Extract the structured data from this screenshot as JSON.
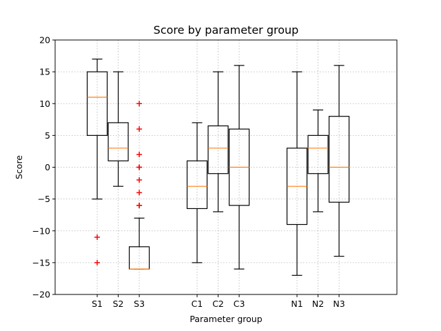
{
  "chart_data": {
    "type": "box",
    "title": "Score by parameter group",
    "xlabel": "Parameter group",
    "ylabel": "Score",
    "ylim": [
      -20,
      20
    ],
    "yticks": [
      -20,
      -15,
      -10,
      -5,
      0,
      5,
      10,
      15,
      20
    ],
    "grid": true,
    "colors": {
      "box": "#000000",
      "median": "#ff7f0e",
      "flier": "#ff0000",
      "grid": "#b0b0b0"
    },
    "groups": [
      {
        "label": "S1",
        "pos": 2.5,
        "q1": 5,
        "median": 11,
        "q3": 15,
        "whisker_low": -5,
        "whisker_high": 17,
        "fliers": [
          -11,
          -15
        ]
      },
      {
        "label": "S2",
        "pos": 3.5,
        "q1": 1,
        "median": 3,
        "q3": 7,
        "whisker_low": -3,
        "whisker_high": 15,
        "fliers": []
      },
      {
        "label": "S3",
        "pos": 4.5,
        "q1": -16,
        "median": -16,
        "q3": -12.5,
        "whisker_low": -16,
        "whisker_high": -8,
        "fliers": [
          10,
          6,
          2,
          0,
          0,
          -2,
          -4,
          -6,
          -6
        ]
      },
      {
        "label": "C1",
        "pos": 7.25,
        "q1": -6.5,
        "median": -3,
        "q3": 1,
        "whisker_low": -15,
        "whisker_high": 7,
        "fliers": []
      },
      {
        "label": "C2",
        "pos": 8.25,
        "q1": -1,
        "median": 3,
        "q3": 6.5,
        "whisker_low": -7,
        "whisker_high": 15,
        "fliers": []
      },
      {
        "label": "C3",
        "pos": 9.25,
        "q1": -6,
        "median": 0,
        "q3": 6,
        "whisker_low": -16,
        "whisker_high": 16,
        "fliers": []
      },
      {
        "label": "N1",
        "pos": 12,
        "q1": -9,
        "median": -3,
        "q3": 3,
        "whisker_low": -17,
        "whisker_high": 15,
        "fliers": []
      },
      {
        "label": "N2",
        "pos": 13,
        "q1": -1,
        "median": 3,
        "q3": 5,
        "whisker_low": -7,
        "whisker_high": 9,
        "fliers": []
      },
      {
        "label": "N3",
        "pos": 14,
        "q1": -5.5,
        "median": 0,
        "q3": 8,
        "whisker_low": -14,
        "whisker_high": 16,
        "fliers": []
      }
    ],
    "xlim": [
      0.5,
      16.75
    ]
  }
}
